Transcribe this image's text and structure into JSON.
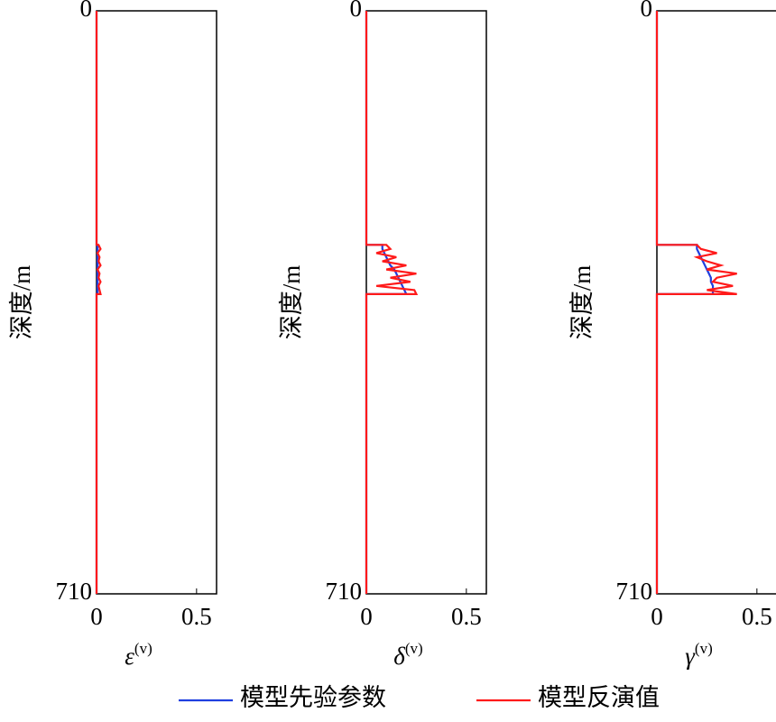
{
  "chart_data": [
    {
      "type": "line",
      "ylabel": "深度/m",
      "xlabel": {
        "base": "ε",
        "sup": "(v)"
      },
      "xlim": [
        0,
        0.6
      ],
      "xticks": [
        0,
        0.5
      ],
      "ylim": [
        710,
        0
      ],
      "yticks": [
        0,
        710
      ],
      "y": [
        0,
        285,
        285,
        290,
        295,
        300,
        305,
        310,
        315,
        320,
        325,
        330,
        335,
        340,
        345,
        345,
        710
      ],
      "series": [
        {
          "name": "模型先验参数",
          "color": "#1f3fe0",
          "values": [
            0,
            0,
            0.005,
            0.005,
            0.005,
            0.005,
            0.005,
            0.005,
            0.005,
            0.005,
            0.005,
            0.005,
            0.005,
            0.005,
            0.005,
            0,
            0
          ]
        },
        {
          "name": "模型反演值",
          "color": "#ff1a1a",
          "values": [
            0,
            0,
            0.01,
            0.02,
            0.005,
            0.015,
            0.01,
            0.02,
            0.005,
            0.015,
            0.01,
            0.02,
            0.01,
            0.015,
            0.02,
            0,
            0
          ]
        }
      ]
    },
    {
      "type": "line",
      "ylabel": "深度/m",
      "xlabel": {
        "base": "δ",
        "sup": "(v)"
      },
      "xlim": [
        0,
        0.6
      ],
      "xticks": [
        0,
        0.5
      ],
      "ylim": [
        710,
        0
      ],
      "yticks": [
        0,
        710
      ],
      "y": [
        0,
        285,
        285,
        290,
        295,
        300,
        305,
        310,
        315,
        320,
        325,
        330,
        335,
        340,
        345,
        345,
        710
      ],
      "series": [
        {
          "color": "#1f3fe0",
          "values": [
            0,
            0,
            0.08,
            0.08,
            0.09,
            0.1,
            0.11,
            0.12,
            0.14,
            0.15,
            0.16,
            0.17,
            0.18,
            0.19,
            0.2,
            0,
            0
          ]
        },
        {
          "color": "#ff1a1a",
          "values": [
            0,
            0,
            0.1,
            0.12,
            0.05,
            0.15,
            0.08,
            0.2,
            0.1,
            0.25,
            0.12,
            0.22,
            0.05,
            0.24,
            0.25,
            0,
            0
          ]
        }
      ]
    },
    {
      "type": "line",
      "ylabel": "深度/m",
      "xlabel": {
        "base": "γ",
        "sup": "(v)"
      },
      "xlim": [
        0,
        0.6
      ],
      "xticks": [
        0,
        0.5
      ],
      "ylim": [
        710,
        0
      ],
      "yticks": [
        0,
        710
      ],
      "y": [
        0,
        285,
        285,
        290,
        295,
        300,
        305,
        310,
        315,
        320,
        325,
        330,
        335,
        340,
        345,
        345,
        710
      ],
      "series": [
        {
          "color": "#1f3fe0",
          "values": [
            0,
            0,
            0.2,
            0.2,
            0.21,
            0.22,
            0.23,
            0.24,
            0.25,
            0.26,
            0.27,
            0.27,
            0.28,
            0.28,
            0.28,
            0,
            0
          ]
        },
        {
          "color": "#ff1a1a",
          "values": [
            0,
            0,
            0.2,
            0.22,
            0.3,
            0.2,
            0.25,
            0.32,
            0.25,
            0.4,
            0.3,
            0.28,
            0.38,
            0.25,
            0.4,
            0,
            0
          ]
        }
      ]
    }
  ]
}
